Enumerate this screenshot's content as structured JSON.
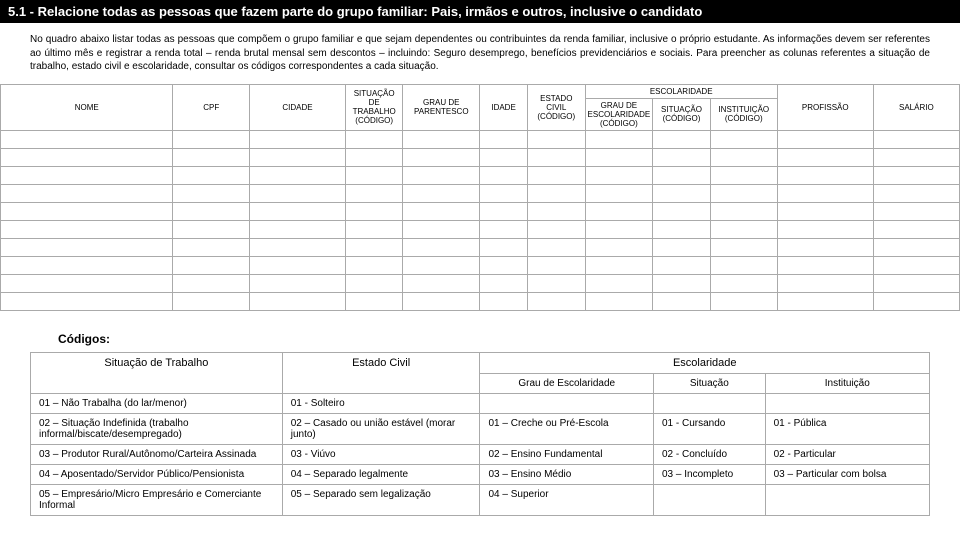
{
  "header": {
    "title": "5.1 - Relacione todas as pessoas que fazem parte do grupo familiar: Pais, irmãos e outros, inclusive o candidato"
  },
  "instructions": {
    "text": "No quadro abaixo listar todas as pessoas que compõem o grupo familiar e que sejam dependentes ou contribuintes da renda familiar, inclusive o próprio estudante. As informações devem ser referentes ao último mês e registrar a renda total – renda brutal mensal sem descontos – incluindo: Seguro desemprego, benefícios previdenciários e sociais. Para preencher as colunas referentes a situação de trabalho, estado civil e escolaridade, consultar os códigos correspondentes a cada situação."
  },
  "mainTable": {
    "headers": {
      "nome": "NOME",
      "cpf": "CPF",
      "cidade": "CIDADE",
      "situacao": "SITUAÇÃO DE TRABALHO (CÓDIGO)",
      "grau": "GRAU DE PARENTESCO",
      "idade": "IDADE",
      "estadoCivil": "ESTADO CIVIL (CÓDIGO)",
      "escolaridade": "ESCOLARIDADE",
      "escGrau": "GRAU DE ESCOLARIDADE (CÓDIGO)",
      "escSituacao": "SITUAÇÃO (CÓDIGO)",
      "escInst": "INSTITUIÇÃO (CÓDIGO)",
      "profissao": "PROFISSÃO",
      "salario": "SALÁRIO"
    },
    "rowCount": 10,
    "colWidths": {
      "nome": "18%",
      "cpf": "8%",
      "cidade": "10%",
      "situacao": "6%",
      "grau": "8%",
      "idade": "5%",
      "estadoCivil": "6%",
      "escGrau": "7%",
      "escSituacao": "6%",
      "escInst": "7%",
      "profissao": "10%",
      "salario": "9%"
    }
  },
  "codes": {
    "title": "Códigos:",
    "categories": {
      "situacaoTrabalho": "Situação de Trabalho",
      "estadoCivil": "Estado Civil",
      "escolaridade": "Escolaridade",
      "grauEsc": "Grau de Escolaridade",
      "situacao": "Situação",
      "instituicao": "Instituição"
    },
    "rows": [
      {
        "st": "01 – Não Trabalha (do lar/menor)",
        "ec": "01 - Solteiro",
        "ge": "",
        "si": "",
        "in": ""
      },
      {
        "st": "02 – Situação Indefinida (trabalho informal/biscate/desempregado)",
        "ec": "02 – Casado ou união estável (morar junto)",
        "ge": "01 – Creche ou Pré-Escola",
        "si": "01 - Cursando",
        "in": "01 - Pública"
      },
      {
        "st": "03 – Produtor Rural/Autônomo/Carteira Assinada",
        "ec": "03 - Viúvo",
        "ge": "02 – Ensino Fundamental",
        "si": "02 - Concluído",
        "in": "02 - Particular"
      },
      {
        "st": "04 – Aposentado/Servidor Público/Pensionista",
        "ec": "04 – Separado legalmente",
        "ge": "03 – Ensino Médio",
        "si": "03 – Incompleto",
        "in": "03 – Particular com bolsa"
      },
      {
        "st": "05 – Empresário/Micro Empresário e Comerciante Informal",
        "ec": "05 – Separado sem legalização",
        "ge": "04 – Superior",
        "si": "",
        "in": ""
      }
    ]
  }
}
